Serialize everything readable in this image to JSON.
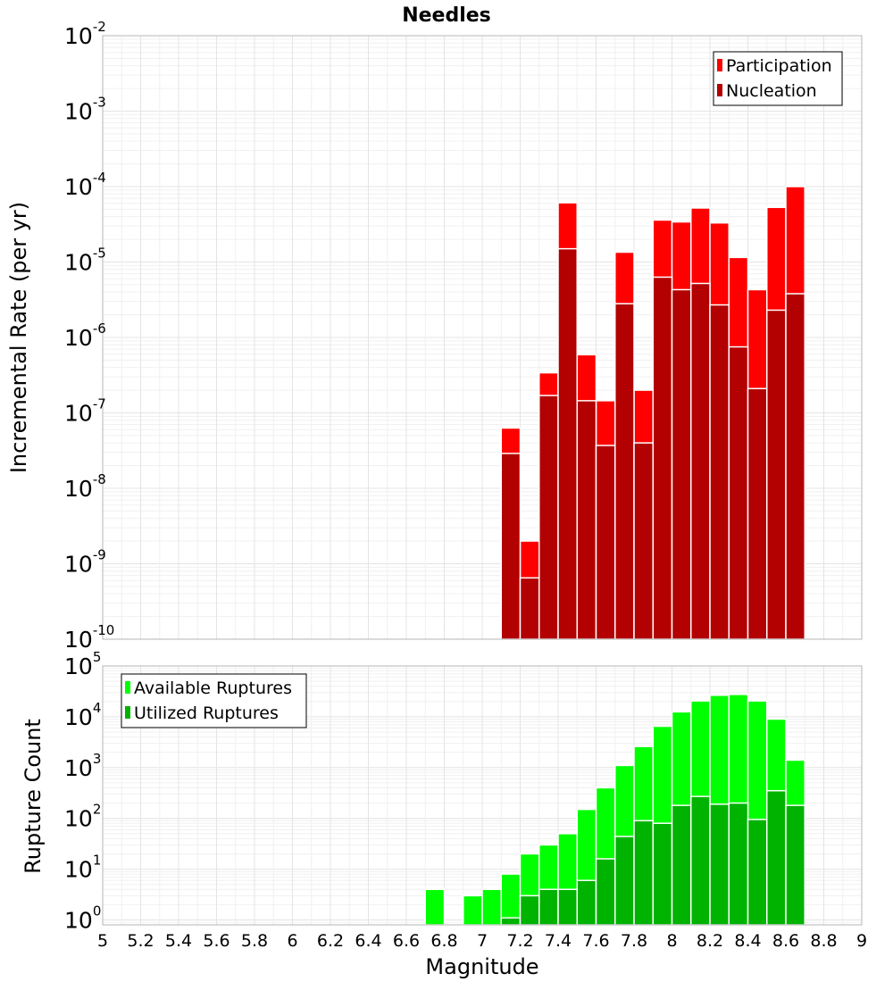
{
  "title": "Needles",
  "chart_data": [
    {
      "type": "bar",
      "ylabel": "Incremental Rate (per yr)",
      "yscale": "log",
      "ylim": [
        1e-10,
        0.01
      ],
      "xlim": [
        5,
        9
      ],
      "grid": true,
      "legend_position": "top-right",
      "yticks": [
        {
          "base": "10",
          "exp": "-10",
          "value": 1e-10
        },
        {
          "base": "10",
          "exp": "-9",
          "value": 1e-09
        },
        {
          "base": "10",
          "exp": "-8",
          "value": 1e-08
        },
        {
          "base": "10",
          "exp": "-7",
          "value": 1e-07
        },
        {
          "base": "10",
          "exp": "-6",
          "value": 1e-06
        },
        {
          "base": "10",
          "exp": "-5",
          "value": 1e-05
        },
        {
          "base": "10",
          "exp": "-4",
          "value": 0.0001
        },
        {
          "base": "10",
          "exp": "-3",
          "value": 0.001
        },
        {
          "base": "10",
          "exp": "-2",
          "value": 0.01
        }
      ],
      "x": [
        7.15,
        7.25,
        7.35,
        7.45,
        7.55,
        7.65,
        7.75,
        7.85,
        7.95,
        8.05,
        8.15,
        8.25,
        8.35,
        8.45,
        8.55,
        8.65
      ],
      "series": [
        {
          "name": "Participation",
          "color": "#ff0000",
          "values": [
            6.3e-08,
            2e-09,
            3.4e-07,
            6.1e-05,
            5.9e-07,
            1.45e-07,
            1.35e-05,
            2e-07,
            3.6e-05,
            3.4e-05,
            5.2e-05,
            3.3e-05,
            1.15e-05,
            4.3e-06,
            5.3e-05,
            0.0001
          ]
        },
        {
          "name": "Nucleation",
          "color": "#b30000",
          "values": [
            2.9e-08,
            6.5e-10,
            1.7e-07,
            1.5e-05,
            1.45e-07,
            3.7e-08,
            2.8e-06,
            4e-08,
            6.3e-06,
            4.3e-06,
            5.2e-06,
            2.7e-06,
            7.5e-07,
            2.1e-07,
            2.3e-06,
            3.8e-06
          ]
        }
      ]
    },
    {
      "type": "bar",
      "xlabel": "Magnitude",
      "ylabel": "Rupture Count",
      "yscale": "log",
      "ylim": [
        0.8,
        100000
      ],
      "xlim": [
        5,
        9
      ],
      "grid": true,
      "legend_position": "top-left",
      "yticks": [
        {
          "base": "10",
          "exp": "0",
          "value": 1
        },
        {
          "base": "10",
          "exp": "1",
          "value": 10
        },
        {
          "base": "10",
          "exp": "2",
          "value": 100
        },
        {
          "base": "10",
          "exp": "3",
          "value": 1000
        },
        {
          "base": "10",
          "exp": "4",
          "value": 10000
        },
        {
          "base": "10",
          "exp": "5",
          "value": 100000
        }
      ],
      "xticks": [
        "5",
        "5.2",
        "5.4",
        "5.6",
        "5.8",
        "6",
        "6.2",
        "6.4",
        "6.6",
        "6.8",
        "7",
        "7.2",
        "7.4",
        "7.6",
        "7.8",
        "8",
        "8.2",
        "8.4",
        "8.6",
        "8.8",
        "9"
      ],
      "x": [
        6.75,
        6.95,
        7.05,
        7.15,
        7.25,
        7.35,
        7.45,
        7.55,
        7.65,
        7.75,
        7.85,
        7.95,
        8.05,
        8.15,
        8.25,
        8.35,
        8.45,
        8.55,
        8.65
      ],
      "series": [
        {
          "name": "Available Ruptures",
          "color": "#00ff00",
          "values": [
            4,
            3,
            4,
            8,
            20,
            30,
            50,
            150,
            400,
            1100,
            2600,
            6500,
            12500,
            20500,
            26500,
            27500,
            20500,
            9000,
            1400
          ]
        },
        {
          "name": "Utilized Ruptures",
          "color": "#00b300",
          "values": [
            null,
            null,
            null,
            1.1,
            3,
            4,
            4,
            6,
            16,
            44,
            90,
            80,
            180,
            270,
            190,
            200,
            95,
            350,
            180
          ]
        }
      ]
    }
  ]
}
